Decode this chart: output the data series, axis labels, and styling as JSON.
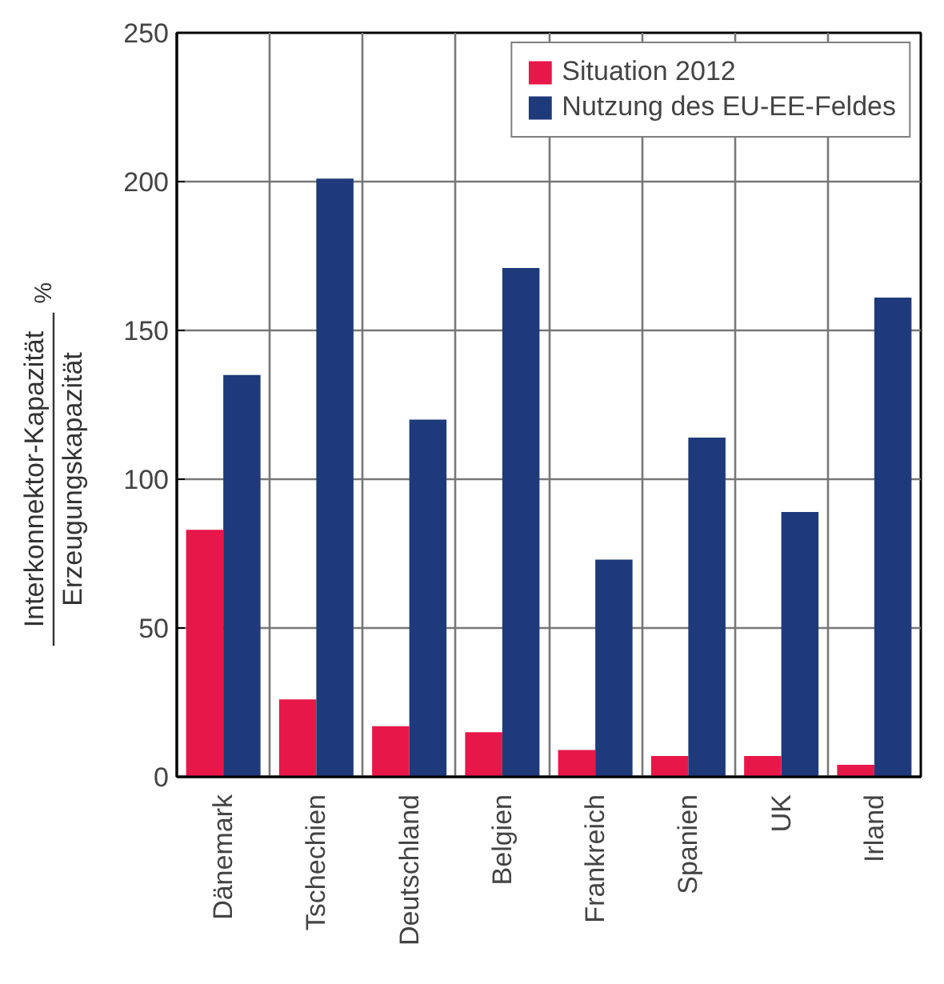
{
  "chart_data": {
    "type": "bar",
    "ylabel": "Interkonnektor-Kapazität\nErzeugungskapazität\n%",
    "categories": [
      "Dänemark",
      "Tschechien",
      "Deutschland",
      "Belgien",
      "Frankreich",
      "Spanien",
      "UK",
      "Irland"
    ],
    "series": [
      {
        "name": "Situation 2012",
        "color": "#e8174a",
        "values": [
          83,
          26,
          17,
          15,
          9,
          7,
          7,
          4
        ]
      },
      {
        "name": "Nutzung des EU-EE-Feldes",
        "color": "#1e3a7a",
        "values": [
          135,
          201,
          120,
          171,
          73,
          114,
          89,
          161
        ]
      }
    ],
    "ylim": [
      0,
      250
    ],
    "yticks": [
      0,
      50,
      100,
      150,
      200,
      250
    ],
    "grid": true,
    "legend": "top right"
  }
}
